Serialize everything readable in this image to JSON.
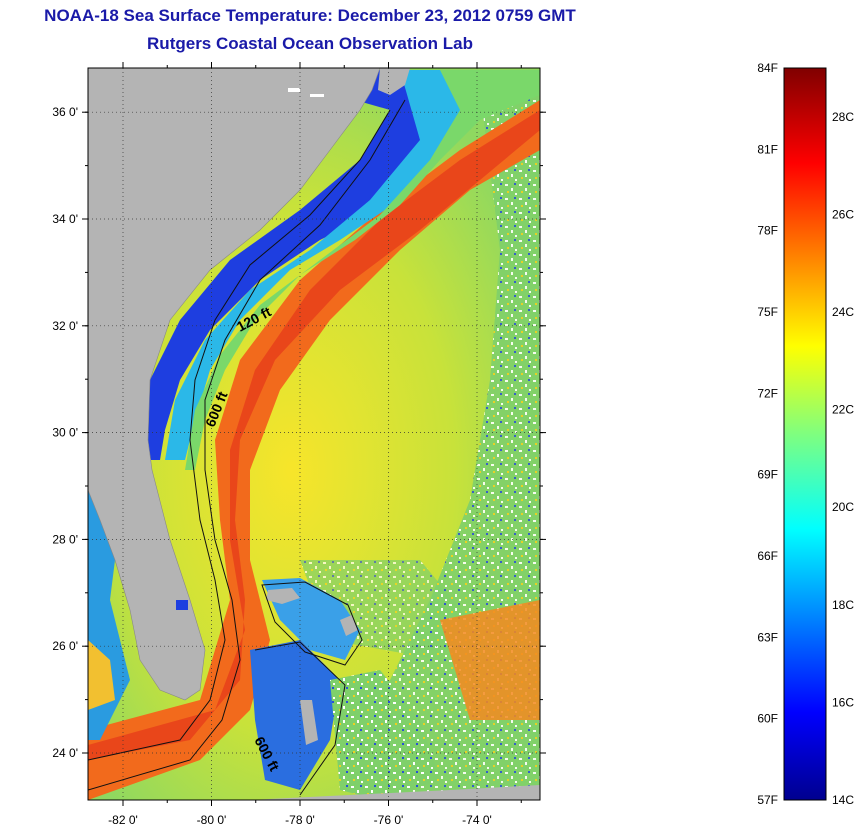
{
  "header": {
    "title": "NOAA-18 Sea Surface Temperature:  December 23, 2012 0759 GMT",
    "subtitle": "Rutgers Coastal Ocean Observation Lab"
  },
  "map": {
    "lat_ticks": [
      "24 0'",
      "26 0'",
      "28 0'",
      "30 0'",
      "32 0'",
      "34 0'",
      "36 0'"
    ],
    "lon_ticks": [
      "-82 0'",
      "-80 0'",
      "-78 0'",
      "-76 0'",
      "-74 0'"
    ],
    "contour_labels": [
      "120 ft",
      "600 ft",
      "600 ft"
    ],
    "land_color": "#b4b4b4",
    "grid": true
  },
  "colorbar": {
    "fahrenheit_labels": [
      "84F",
      "81F",
      "78F",
      "75F",
      "72F",
      "69F",
      "66F",
      "63F",
      "60F",
      "57F"
    ],
    "celsius_labels": [
      "28C",
      "26C",
      "24C",
      "22C",
      "20C",
      "18C",
      "16C",
      "14C"
    ],
    "range_c": [
      14,
      29
    ],
    "colormap": "jet"
  }
}
